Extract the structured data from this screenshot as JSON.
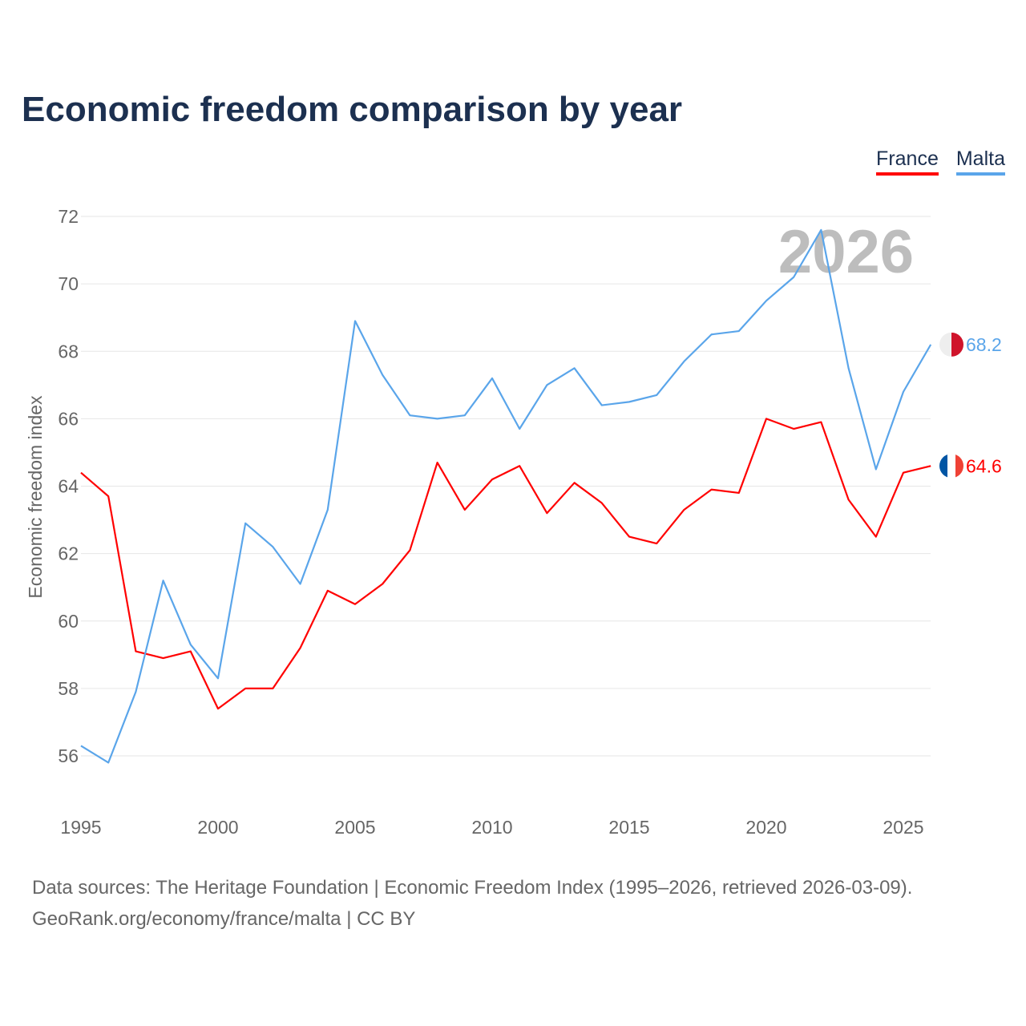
{
  "title": "Economic freedom comparison by year",
  "footer": {
    "line1": "Data sources: The Heritage Foundation | Economic Freedom Index (1995–2026, retrieved 2026-03-09).",
    "line2": "GeoRank.org/economy/france/malta | CC BY"
  },
  "chart_data": {
    "type": "line",
    "title": "Economic freedom comparison by year",
    "xlabel": "",
    "ylabel": "Economic freedom index",
    "watermark_year": "2026",
    "x": [
      1995,
      1996,
      1997,
      1998,
      1999,
      2000,
      2001,
      2002,
      2003,
      2004,
      2005,
      2006,
      2007,
      2008,
      2009,
      2010,
      2011,
      2012,
      2013,
      2014,
      2015,
      2016,
      2017,
      2018,
      2019,
      2020,
      2021,
      2022,
      2023,
      2024,
      2025,
      2026
    ],
    "xticks": [
      "1995",
      "2000",
      "2005",
      "2010",
      "2015",
      "2020",
      "2025"
    ],
    "yticks": [
      "56",
      "58",
      "60",
      "62",
      "64",
      "66",
      "68",
      "70",
      "72"
    ],
    "ylim": [
      54.5,
      72
    ],
    "grid": true,
    "legend_position": "top-right",
    "series": [
      {
        "name": "France",
        "color": "#ff0000",
        "end_label": "64.6",
        "values": [
          64.4,
          63.7,
          59.1,
          58.9,
          59.1,
          57.4,
          58.0,
          58.0,
          59.2,
          60.9,
          60.5,
          61.1,
          62.1,
          64.7,
          63.3,
          64.2,
          64.6,
          63.2,
          64.1,
          63.5,
          62.5,
          62.3,
          63.3,
          63.9,
          63.8,
          66.0,
          65.7,
          65.9,
          63.6,
          62.5,
          64.4,
          64.6
        ]
      },
      {
        "name": "Malta",
        "color": "#5aa5ea",
        "end_label": "68.2",
        "values": [
          56.3,
          55.8,
          57.9,
          61.2,
          59.3,
          58.3,
          62.9,
          62.2,
          61.1,
          63.3,
          68.9,
          67.3,
          66.1,
          66.0,
          66.1,
          67.2,
          65.7,
          67.0,
          67.5,
          66.4,
          66.5,
          66.7,
          67.7,
          68.5,
          68.6,
          69.5,
          70.2,
          71.6,
          67.5,
          64.5,
          66.8,
          68.2
        ]
      }
    ]
  }
}
